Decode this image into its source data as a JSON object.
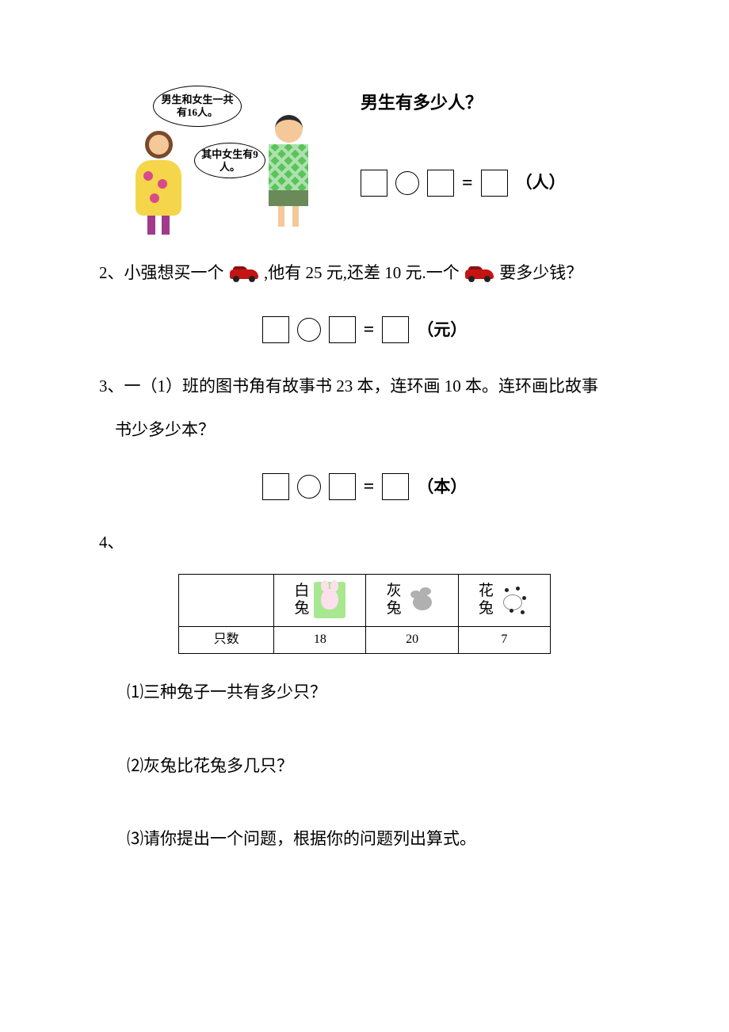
{
  "q1": {
    "bubble1": "男生和女生一共有16人。",
    "bubble2": "其中女生有9人。",
    "title": "男生有多少人？",
    "unit": "（人）"
  },
  "q2": {
    "prefix": "2、小强想买一个",
    "mid": " ,他有 25 元,还差 10 元.一个",
    "suffix": " 要多少钱？",
    "unit": "（元）"
  },
  "q3": {
    "line1": "3、一（1）班的图书角有故事书 23 本，连环画 10 本。连环画比故事",
    "line2": "书少多少本？",
    "unit": "（本）"
  },
  "equals": "=",
  "q4": {
    "label": "4、",
    "table": {
      "headers": {
        "white": [
          "白",
          "兔"
        ],
        "gray": [
          "灰",
          "兔"
        ],
        "flower": [
          "花",
          "兔"
        ]
      },
      "row_label": "只数",
      "counts": {
        "white": "18",
        "gray": "20",
        "flower": "7"
      }
    },
    "subq1": "⑴三种兔子一共有多少只？",
    "subq2": "⑵灰兔比花兔多几只？",
    "subq3": "⑶请你提出一个问题，根据你的问题列出算式。"
  }
}
